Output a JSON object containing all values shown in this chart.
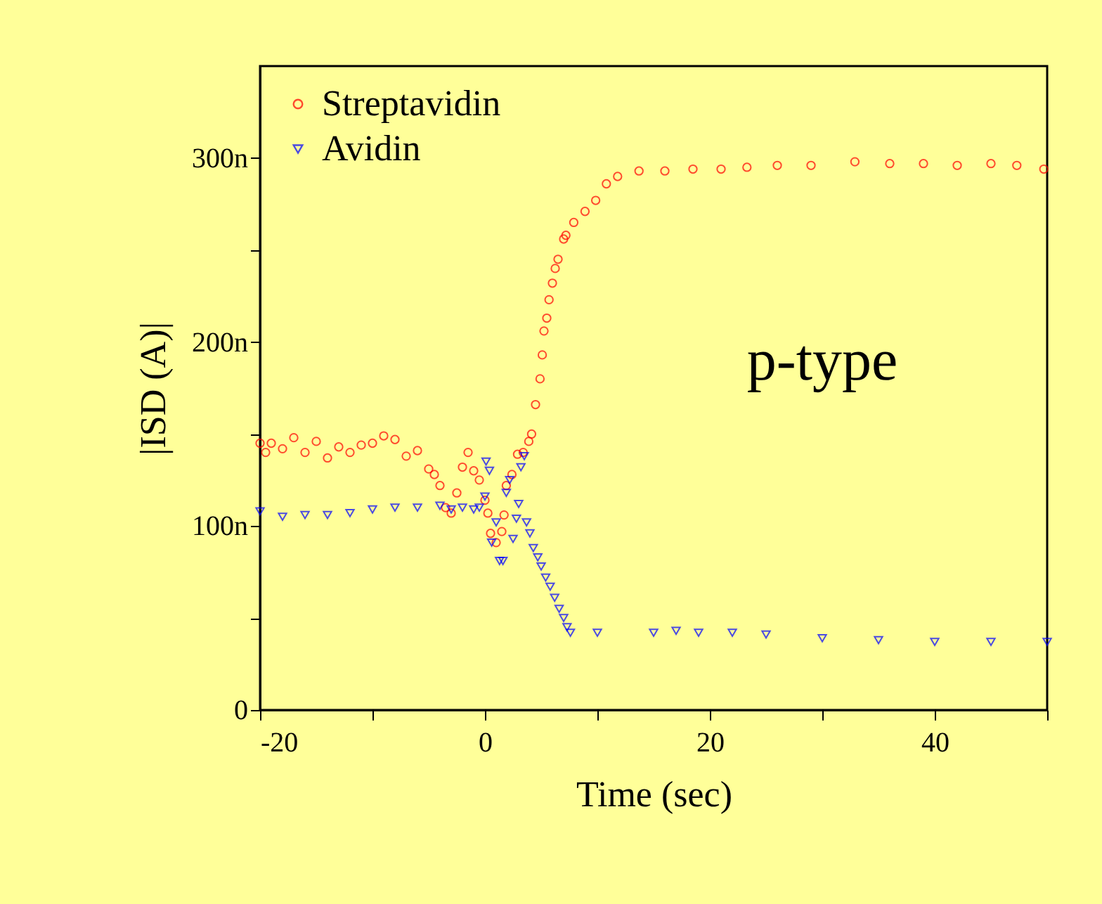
{
  "chart_data": {
    "type": "scatter",
    "xlabel": "Time (sec)",
    "ylabel": "|ISD (A)|",
    "annotations": [
      "p-type"
    ],
    "xlim": [
      -20,
      50
    ],
    "xticks": [
      -20,
      {
        "value": -10,
        "label": null
      },
      0,
      {
        "value": 10,
        "label": null
      },
      20,
      {
        "value": 30,
        "label": null
      },
      40,
      {
        "value": 50,
        "label": null
      }
    ],
    "ylim": [
      0,
      350
    ],
    "yticks": [
      0,
      {
        "value": 50,
        "label": null
      },
      {
        "value": 100,
        "label": "100n"
      },
      {
        "value": 150,
        "label": null
      },
      {
        "value": 200,
        "label": "200n"
      },
      {
        "value": 250,
        "label": null
      },
      {
        "value": 300,
        "label": "300n"
      }
    ],
    "grid": false,
    "legend": "top left",
    "series": [
      {
        "name": "Streptavidin",
        "color": "#ff0000",
        "marker": "circle",
        "x": [
          -20,
          -19.5,
          -19,
          -18,
          -17,
          -16,
          -15,
          -14,
          -13,
          -12,
          -11,
          -10,
          -9,
          -8,
          -7,
          -6,
          -5,
          -4.5,
          -4,
          -3.5,
          -3,
          -2.5,
          -2,
          -1.5,
          -1,
          -0.5,
          0,
          0.26,
          0.5,
          1,
          1.5,
          1.7,
          1.9,
          2.4,
          2.9,
          3.4,
          3.9,
          4.15,
          4.5,
          4.9,
          5.1,
          5.25,
          5.5,
          5.7,
          6,
          6.25,
          6.5,
          7,
          7.2,
          7.9,
          8.9,
          9.85,
          10.8,
          11.8,
          13.7,
          16,
          18.5,
          21,
          23.3,
          26,
          29,
          32.9,
          36,
          39,
          42,
          45,
          47.3,
          49.7
        ],
        "values": [
          145,
          140,
          145,
          142,
          148,
          140,
          146,
          137,
          143,
          140,
          144,
          145,
          149,
          147,
          138,
          141,
          131,
          128,
          122,
          110,
          107,
          118,
          132,
          140,
          130,
          125,
          114,
          107,
          96,
          91,
          97,
          106,
          122,
          128,
          139,
          140,
          146,
          150,
          166,
          180,
          193,
          206,
          213,
          223,
          232,
          240,
          245,
          256,
          258,
          265,
          271,
          277,
          286,
          290,
          293,
          293,
          294,
          294,
          295,
          296,
          296,
          298,
          297,
          297,
          296,
          297,
          296,
          294
        ]
      },
      {
        "name": "Avidin",
        "color": "#0000ff",
        "marker": "triangle",
        "x": [
          -20,
          -18,
          -16,
          -14,
          -12,
          -10,
          -8,
          -6,
          -4,
          -3,
          -2,
          -1,
          -0.5,
          0,
          0.1,
          0.4,
          0.6,
          1,
          1.3,
          1.6,
          1.9,
          2.2,
          2.5,
          2.8,
          3,
          3.2,
          3.5,
          3.7,
          4,
          4.3,
          4.7,
          5,
          5.4,
          5.8,
          6.2,
          6.6,
          7,
          7.3,
          7.6,
          10,
          15,
          17,
          19,
          22,
          25,
          30,
          35,
          40,
          45,
          50
        ],
        "values": [
          108,
          105,
          106,
          106,
          107,
          109,
          110,
          110,
          111,
          109,
          110,
          109,
          110,
          116,
          135,
          130,
          91,
          102,
          81,
          81,
          118,
          125,
          93,
          104,
          112,
          132,
          138,
          102,
          96,
          88,
          83,
          78,
          72,
          67,
          61,
          55,
          50,
          45,
          42,
          42,
          42,
          43,
          42,
          42,
          41,
          39,
          38,
          37,
          37,
          37
        ]
      }
    ]
  }
}
